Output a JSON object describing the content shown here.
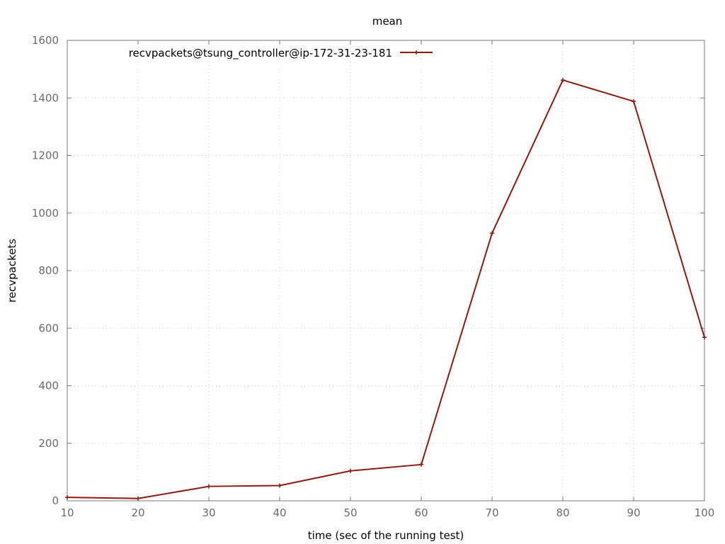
{
  "chart_data": {
    "type": "line",
    "title": "mean",
    "xlabel": "time (sec of the running test)",
    "ylabel": "recvpackets",
    "xlim": [
      10,
      100
    ],
    "ylim": [
      0,
      1600
    ],
    "xticks": [
      10,
      20,
      30,
      40,
      50,
      60,
      70,
      80,
      90,
      100
    ],
    "yticks": [
      0,
      200,
      400,
      600,
      800,
      1000,
      1200,
      1400,
      1600
    ],
    "grid": true,
    "legend_position": "top-left",
    "series": [
      {
        "name": "recvpackets@tsung_controller@ip-172-31-23-181",
        "color": "#8b1a10",
        "marker": "plus",
        "x": [
          10,
          20,
          30,
          40,
          50,
          60,
          70,
          80,
          90,
          100
        ],
        "y": [
          12,
          8,
          50,
          53,
          104,
          126,
          930,
          1462,
          1388,
          568
        ]
      }
    ]
  }
}
